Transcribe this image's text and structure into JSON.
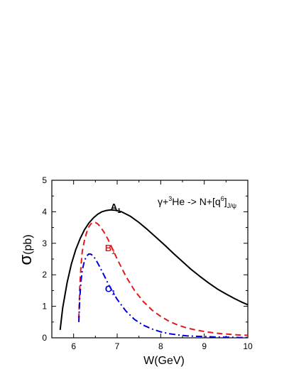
{
  "chart_data": {
    "type": "line",
    "title": "",
    "xlabel": "W(GeV)",
    "ylabel_symbol": "σ",
    "ylabel_unit": "(pb)",
    "xlim": [
      5.5,
      10
    ],
    "ylim": [
      0,
      5
    ],
    "xticks": [
      6,
      7,
      8,
      9,
      10
    ],
    "yticks": [
      0,
      1,
      2,
      3,
      4,
      5
    ],
    "grid": false,
    "legend": "none",
    "annotation": {
      "prefix": "γ+",
      "mass_number": "3",
      "nucleus": "He -> N+[q",
      "power": "6",
      "close": "]",
      "subscript": "J/ψ",
      "placement": "top-right"
    },
    "series": [
      {
        "name": "A",
        "name_sub": "1",
        "color": "#000000",
        "dash": "solid",
        "label_at": [
          6.85,
          4.05
        ],
        "x": [
          5.69,
          5.75,
          5.85,
          5.95,
          6.05,
          6.15,
          6.25,
          6.35,
          6.45,
          6.55,
          6.65,
          6.75,
          6.85,
          6.95,
          7.1,
          7.3,
          7.5,
          7.7,
          7.9,
          8.1,
          8.3,
          8.5,
          8.7,
          8.9,
          9.1,
          9.3,
          9.5,
          9.7,
          9.85,
          10.0
        ],
        "y": [
          0.25,
          0.95,
          1.75,
          2.35,
          2.8,
          3.15,
          3.43,
          3.64,
          3.8,
          3.92,
          4.0,
          4.04,
          4.06,
          4.05,
          4.0,
          3.86,
          3.66,
          3.43,
          3.18,
          2.93,
          2.67,
          2.42,
          2.17,
          1.95,
          1.74,
          1.55,
          1.39,
          1.24,
          1.14,
          1.05
        ]
      },
      {
        "name": "B",
        "name_sub": "1",
        "color": "#e41a1c",
        "dash": "dash",
        "label_at": [
          6.72,
          2.75
        ],
        "x": [
          6.12,
          6.14,
          6.17,
          6.2,
          6.25,
          6.3,
          6.35,
          6.4,
          6.45,
          6.5,
          6.55,
          6.6,
          6.7,
          6.8,
          6.9,
          7.0,
          7.2,
          7.4,
          7.6,
          7.8,
          8.0,
          8.2,
          8.4,
          8.6,
          8.8,
          9.0,
          9.2,
          9.4,
          9.6,
          9.8,
          10.0
        ],
        "y": [
          0.6,
          1.6,
          2.3,
          2.75,
          3.1,
          3.35,
          3.52,
          3.62,
          3.66,
          3.66,
          3.62,
          3.55,
          3.35,
          3.1,
          2.8,
          2.5,
          1.95,
          1.5,
          1.15,
          0.88,
          0.68,
          0.52,
          0.4,
          0.31,
          0.25,
          0.2,
          0.16,
          0.13,
          0.11,
          0.09,
          0.08
        ]
      },
      {
        "name": "C",
        "name_sub": "1",
        "color": "#0000dd",
        "dash": "dashdot",
        "label_at": [
          6.72,
          1.45
        ],
        "x": [
          6.12,
          6.14,
          6.17,
          6.2,
          6.25,
          6.3,
          6.35,
          6.4,
          6.45,
          6.5,
          6.55,
          6.6,
          6.7,
          6.8,
          6.9,
          7.0,
          7.2,
          7.4,
          7.6,
          7.8,
          8.0,
          8.2,
          8.4,
          8.6,
          8.8,
          9.0,
          9.2,
          9.4,
          9.6,
          9.8,
          10.0
        ],
        "y": [
          0.5,
          1.25,
          1.8,
          2.15,
          2.45,
          2.6,
          2.66,
          2.65,
          2.6,
          2.5,
          2.38,
          2.25,
          1.98,
          1.7,
          1.45,
          1.22,
          0.85,
          0.58,
          0.4,
          0.28,
          0.19,
          0.13,
          0.09,
          0.06,
          0.05,
          0.04,
          0.03,
          0.02,
          0.02,
          0.01,
          0.01
        ]
      }
    ]
  }
}
